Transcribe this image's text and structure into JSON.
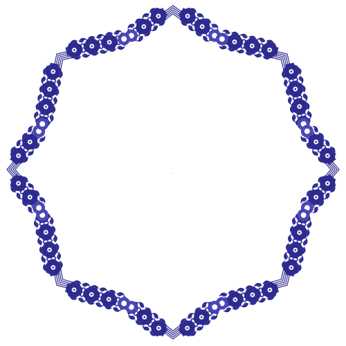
{
  "ornament": {
    "motif": "eight-pointed-star-frame",
    "corner_icon": "chevron-corner-icon",
    "band_pattern_icon": "floral-scroll-icon",
    "colors": {
      "ink": "#2d2b8f",
      "ink_light": "#4a47b5",
      "paper": "#ffffff"
    }
  }
}
